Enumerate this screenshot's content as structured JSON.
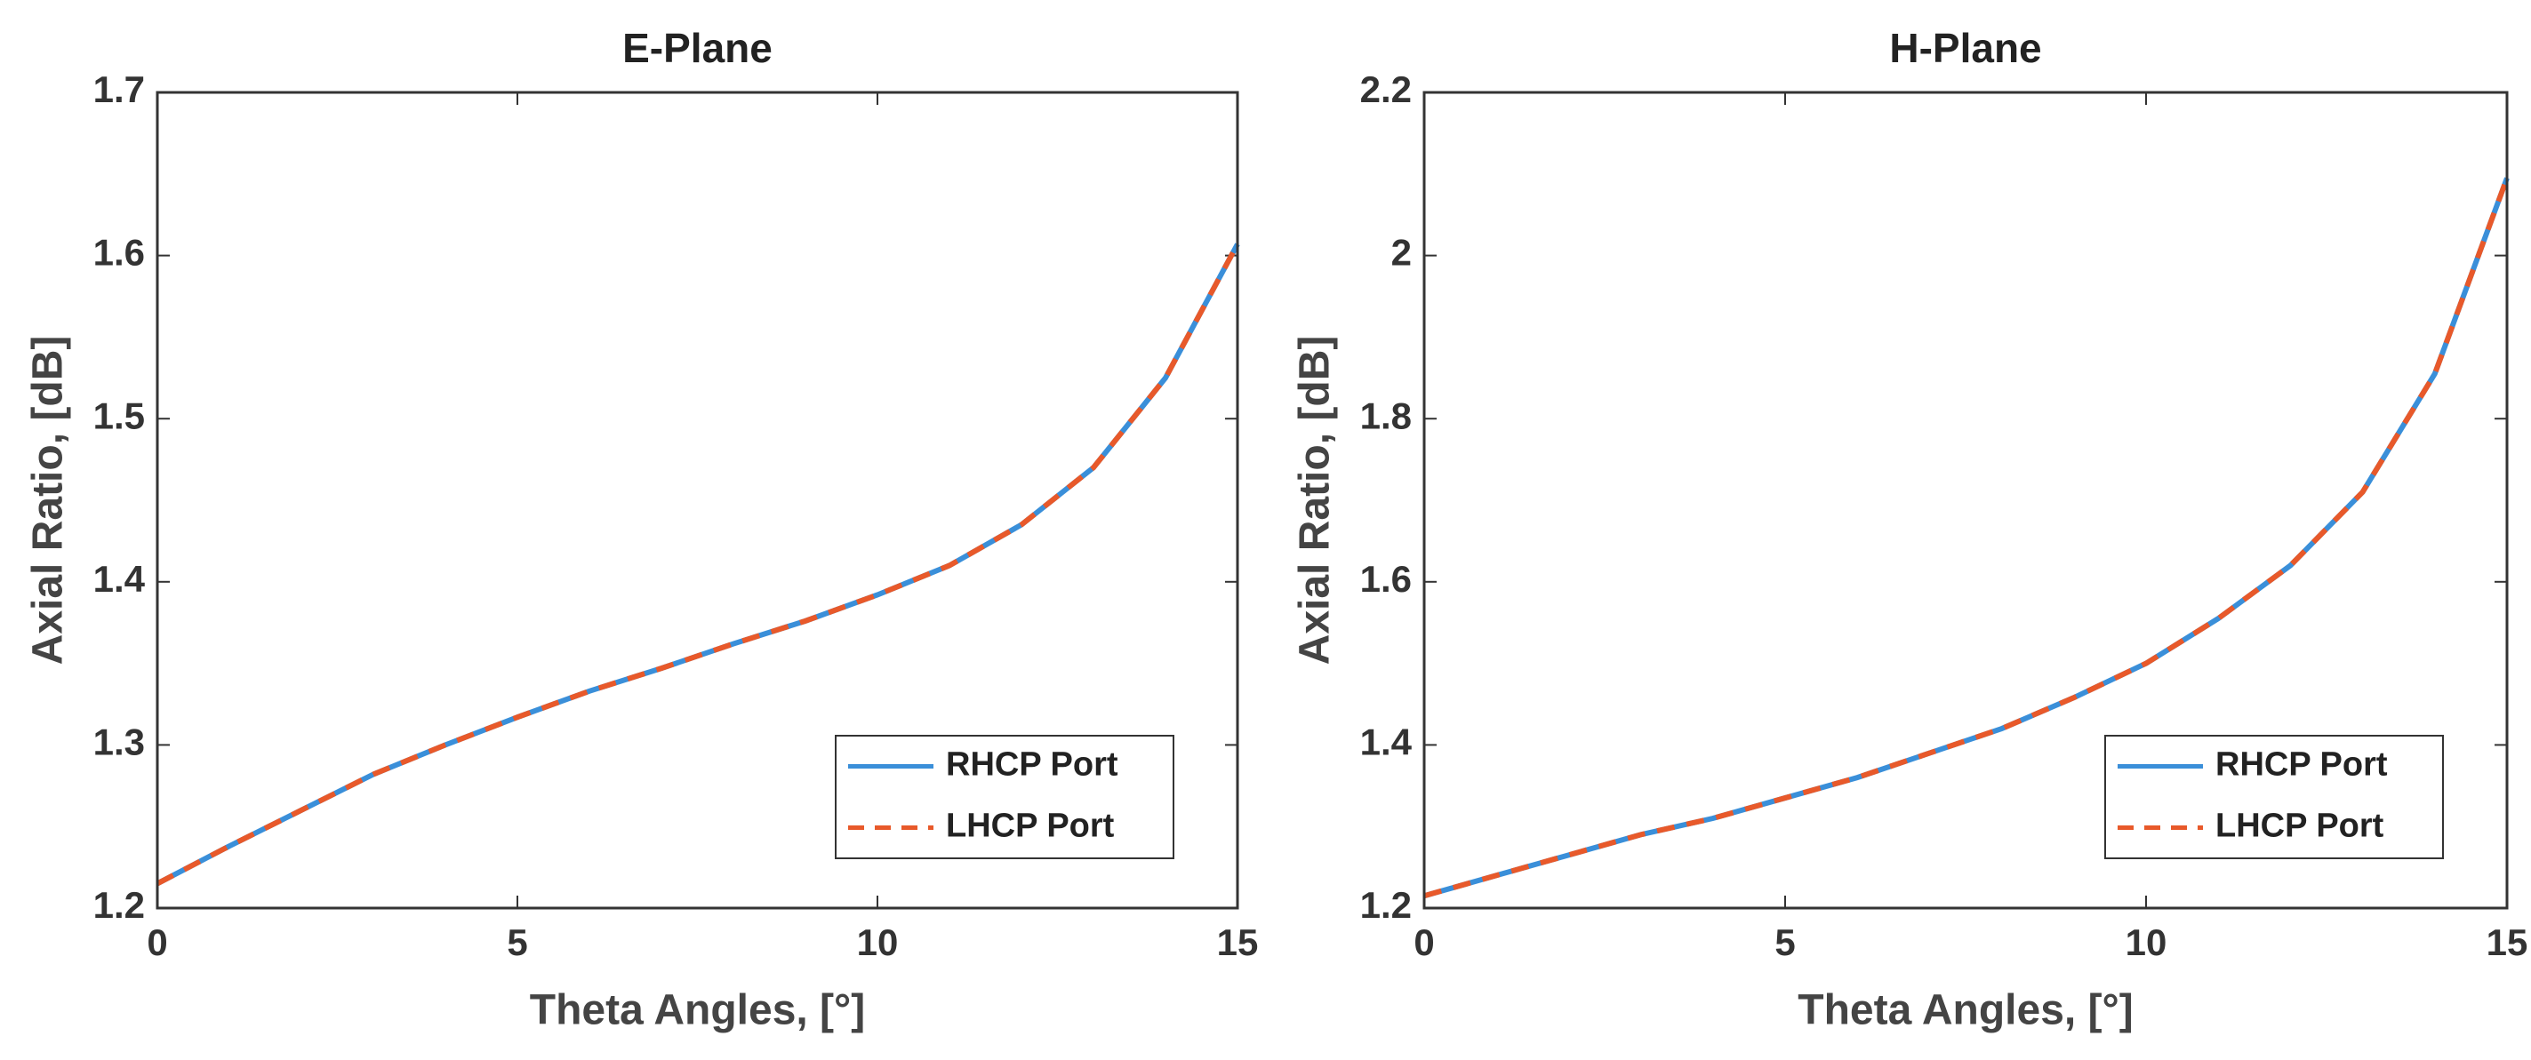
{
  "chart_data": [
    {
      "type": "line",
      "title": "E-Plane",
      "x_label": "Theta Angles, [°]",
      "y_label": "Axial Ratio, [dB]",
      "x": [
        0,
        1,
        2,
        3,
        4,
        5,
        6,
        7,
        8,
        9,
        10,
        11,
        12,
        13,
        14,
        15
      ],
      "series": [
        {
          "name": "RHCP Port",
          "color": "#3a8fd9",
          "dashed": false,
          "values": [
            1.215,
            1.238,
            1.26,
            1.282,
            1.3,
            1.317,
            1.333,
            1.347,
            1.362,
            1.376,
            1.392,
            1.41,
            1.435,
            1.47,
            1.525,
            1.607
          ]
        },
        {
          "name": "LHCP Port",
          "color": "#e8592a",
          "dashed": true,
          "values": [
            1.215,
            1.238,
            1.26,
            1.282,
            1.3,
            1.317,
            1.333,
            1.347,
            1.362,
            1.376,
            1.392,
            1.41,
            1.435,
            1.47,
            1.525,
            1.607
          ]
        }
      ],
      "xlim": [
        0,
        15
      ],
      "xticks": [
        0,
        5,
        10,
        15
      ],
      "ylim": [
        1.2,
        1.7
      ],
      "yticks": [
        1.2,
        1.3,
        1.4,
        1.5,
        1.6,
        1.7
      ],
      "legend": "lower right"
    },
    {
      "type": "line",
      "title": "H-Plane",
      "x_label": "Theta Angles, [°]",
      "y_label": "Axial Ratio, [dB]",
      "x": [
        0,
        1,
        2,
        3,
        4,
        5,
        6,
        7,
        8,
        9,
        10,
        11,
        12,
        13,
        14,
        15
      ],
      "series": [
        {
          "name": "RHCP Port",
          "color": "#3a8fd9",
          "dashed": false,
          "values": [
            1.215,
            1.24,
            1.265,
            1.29,
            1.31,
            1.335,
            1.36,
            1.39,
            1.42,
            1.458,
            1.5,
            1.555,
            1.62,
            1.71,
            1.855,
            2.095
          ]
        },
        {
          "name": "LHCP Port",
          "color": "#e8592a",
          "dashed": true,
          "values": [
            1.215,
            1.24,
            1.265,
            1.29,
            1.31,
            1.335,
            1.36,
            1.39,
            1.42,
            1.458,
            1.5,
            1.555,
            1.62,
            1.71,
            1.855,
            2.095
          ]
        }
      ],
      "xlim": [
        0,
        15
      ],
      "xticks": [
        0,
        5,
        10,
        15
      ],
      "ylim": [
        1.2,
        2.2
      ],
      "yticks": [
        1.2,
        1.4,
        1.6,
        1.8,
        2,
        2.2
      ],
      "legend": "lower right"
    }
  ]
}
